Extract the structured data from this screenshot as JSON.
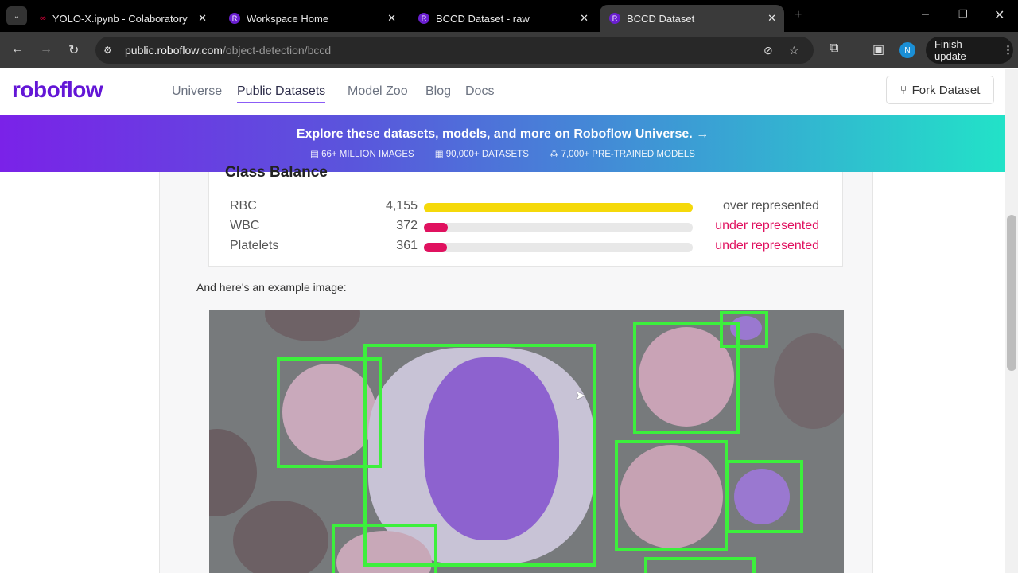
{
  "browser": {
    "tabs": [
      {
        "title": "YOLO-X.ipynb - Colaboratory",
        "active": false
      },
      {
        "title": "Workspace Home",
        "active": false
      },
      {
        "title": "BCCD Dataset - raw",
        "active": false
      },
      {
        "title": "BCCD Dataset",
        "active": true
      }
    ],
    "url_host": "public.roboflow.com",
    "url_path": "/object-detection/bccd",
    "profile_initial": "N",
    "finish_update": "Finish update"
  },
  "header": {
    "logo": "roboflow",
    "nav": [
      {
        "label": "Universe"
      },
      {
        "label": "Public Datasets",
        "active": true
      },
      {
        "label": "Model Zoo"
      },
      {
        "label": "Blog"
      },
      {
        "label": "Docs"
      }
    ],
    "fork_button": "Fork Dataset"
  },
  "banner": {
    "title": "Explore these datasets, models, and more on Roboflow Universe. →",
    "stats": [
      "66+ MILLION IMAGES",
      "90,000+ DATASETS",
      "7,000+ PRE-TRAINED MODELS"
    ]
  },
  "class_balance": {
    "title": "Class Balance",
    "rows": [
      {
        "name": "RBC",
        "count": "4,155",
        "fraction": 1.0,
        "status": "over represented",
        "color": "#f5d90a"
      },
      {
        "name": "WBC",
        "count": "372",
        "fraction": 0.09,
        "status": "under represented",
        "color": "#e0115f"
      },
      {
        "name": "Platelets",
        "count": "361",
        "fraction": 0.087,
        "status": "under represented",
        "color": "#e0115f"
      }
    ]
  },
  "example_text": "And here's an example image:",
  "colors": {
    "brand": "#6316d6",
    "box": "#3cf03c",
    "over": "#f5d90a",
    "under": "#e0115f"
  }
}
